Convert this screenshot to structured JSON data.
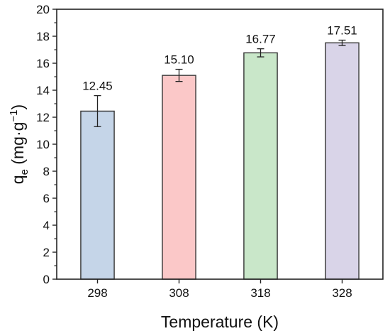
{
  "chart_data": {
    "type": "bar",
    "categories": [
      "298",
      "308",
      "318",
      "328"
    ],
    "values": [
      12.45,
      15.1,
      16.77,
      17.51
    ],
    "value_labels": [
      "12.45",
      "15.10",
      "16.77",
      "17.51"
    ],
    "errors": [
      1.15,
      0.45,
      0.3,
      0.2
    ],
    "colors": [
      "#c5d5e8",
      "#fbc8c8",
      "#c9e7c9",
      "#d9d4e8"
    ],
    "bar_edge_color": "#333333",
    "xlabel": "Temperature (K)",
    "ylabel": {
      "base": "q",
      "subscript": "e",
      "rest": " (mg·g",
      "superscript": "−1",
      "close": ")"
    },
    "ylim": [
      0,
      20
    ],
    "yticks": [
      0,
      2,
      4,
      6,
      8,
      10,
      12,
      14,
      16,
      18,
      20
    ],
    "ytick_labels": [
      "0",
      "2",
      "4",
      "6",
      "8",
      "10",
      "12",
      "14",
      "16",
      "18",
      "20"
    ],
    "grid": false,
    "legend": "none"
  }
}
